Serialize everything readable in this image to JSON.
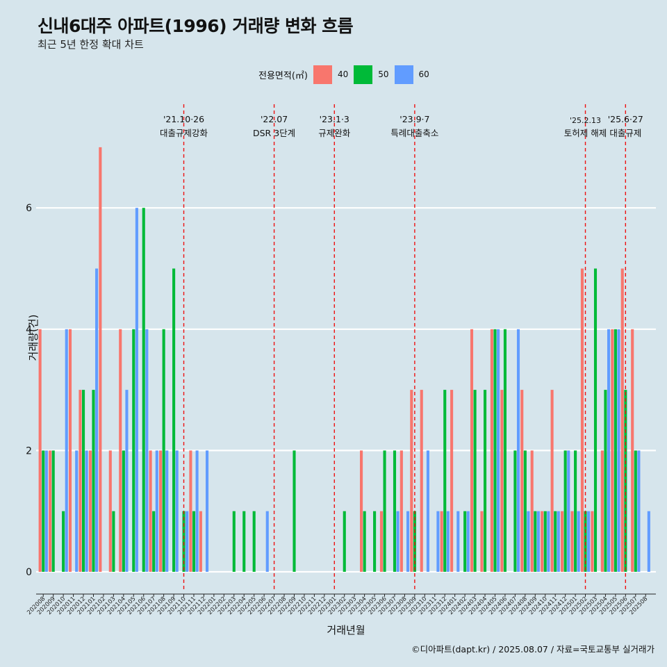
{
  "header": {
    "title": "신내6대주 아파트(1996) 거래량 변화 흐름",
    "subtitle": "최근 5년 한정 확대 차트"
  },
  "legend": {
    "title": "전용면적(㎡)",
    "items": [
      {
        "label": "40",
        "color": "#f8766d"
      },
      {
        "label": "50",
        "color": "#00ba38"
      },
      {
        "label": "60",
        "color": "#619cff"
      }
    ]
  },
  "caption": "©디아파트(dapt.kr) / 2025.08.07 / 자료=국토교통부 실거래가",
  "chart_data": {
    "type": "bar",
    "title": "신내6대주 아파트(1996) 거래량 변화 흐름",
    "subtitle": "최근 5년 한정 확대 차트",
    "xlabel": "거래년월",
    "ylabel": "거래량(건)",
    "ylim": [
      0,
      7
    ],
    "yticks": [
      0,
      2,
      4,
      6
    ],
    "grid": true,
    "legend_placement": "top",
    "categories": [
      "202008",
      "202009",
      "202010",
      "202011",
      "202012",
      "202101",
      "202102",
      "202103",
      "202104",
      "202105",
      "202106",
      "202107",
      "202108",
      "202109",
      "202110",
      "202111",
      "202112",
      "202201",
      "202202",
      "202203",
      "202204",
      "202205",
      "202206",
      "202207",
      "202208",
      "202209",
      "202210",
      "202211",
      "202212",
      "202301",
      "202302",
      "202303",
      "202304",
      "202305",
      "202306",
      "202307",
      "202308",
      "202309",
      "202310",
      "202311",
      "202312",
      "202401",
      "202402",
      "202403",
      "202404",
      "202405",
      "202406",
      "202407",
      "202408",
      "202409",
      "202410",
      "202411",
      "202412",
      "202501",
      "202502",
      "202503",
      "202504",
      "202505",
      "202506",
      "202507",
      "202508"
    ],
    "series": [
      {
        "name": "40",
        "color": "#f8766d",
        "values": [
          4,
          2,
          0,
          4,
          3,
          2,
          7,
          2,
          4,
          0,
          0,
          2,
          2,
          0,
          0,
          2,
          1,
          0,
          0,
          0,
          0,
          0,
          0,
          0,
          0,
          0,
          0,
          0,
          0,
          0,
          0,
          0,
          2,
          0,
          1,
          0,
          2,
          3,
          3,
          0,
          1,
          3,
          0,
          4,
          1,
          4,
          3,
          0,
          3,
          2,
          1,
          3,
          1,
          1,
          5,
          1,
          2,
          4,
          5,
          4,
          0
        ]
      },
      {
        "name": "50",
        "color": "#00ba38",
        "values": [
          2,
          2,
          1,
          0,
          3,
          3,
          0,
          1,
          2,
          4,
          6,
          1,
          4,
          5,
          1,
          1,
          0,
          0,
          0,
          1,
          1,
          1,
          0,
          0,
          0,
          2,
          0,
          0,
          0,
          0,
          1,
          0,
          1,
          1,
          2,
          2,
          0,
          1,
          0,
          0,
          3,
          0,
          1,
          3,
          3,
          4,
          4,
          2,
          2,
          1,
          1,
          1,
          2,
          2,
          1,
          5,
          3,
          4,
          3,
          2,
          0
        ]
      },
      {
        "name": "60",
        "color": "#619cff",
        "values": [
          2,
          0,
          4,
          2,
          2,
          5,
          0,
          0,
          3,
          6,
          4,
          2,
          2,
          2,
          1,
          2,
          2,
          0,
          0,
          0,
          0,
          0,
          1,
          0,
          0,
          0,
          0,
          0,
          0,
          0,
          0,
          0,
          0,
          0,
          0,
          1,
          1,
          0,
          2,
          1,
          1,
          1,
          1,
          0,
          0,
          4,
          0,
          4,
          1,
          1,
          1,
          1,
          2,
          1,
          1,
          0,
          4,
          4,
          0,
          2,
          1
        ]
      }
    ],
    "annotations": [
      {
        "index": 14.5,
        "date": "'21.10·26",
        "label": "대출규제강화"
      },
      {
        "index": 23.5,
        "date": "'22.07",
        "label": "DSR 3단계"
      },
      {
        "index": 29.5,
        "date": "'23.1·3",
        "label": "규제완화"
      },
      {
        "index": 37.5,
        "date": "'23.9·7",
        "label": "특례대출축소"
      },
      {
        "index": 54.5,
        "date": "'25.2.13",
        "label": "토허제 해제"
      },
      {
        "index": 58.5,
        "date": "'25.6·27",
        "label": "대출규제"
      }
    ]
  }
}
